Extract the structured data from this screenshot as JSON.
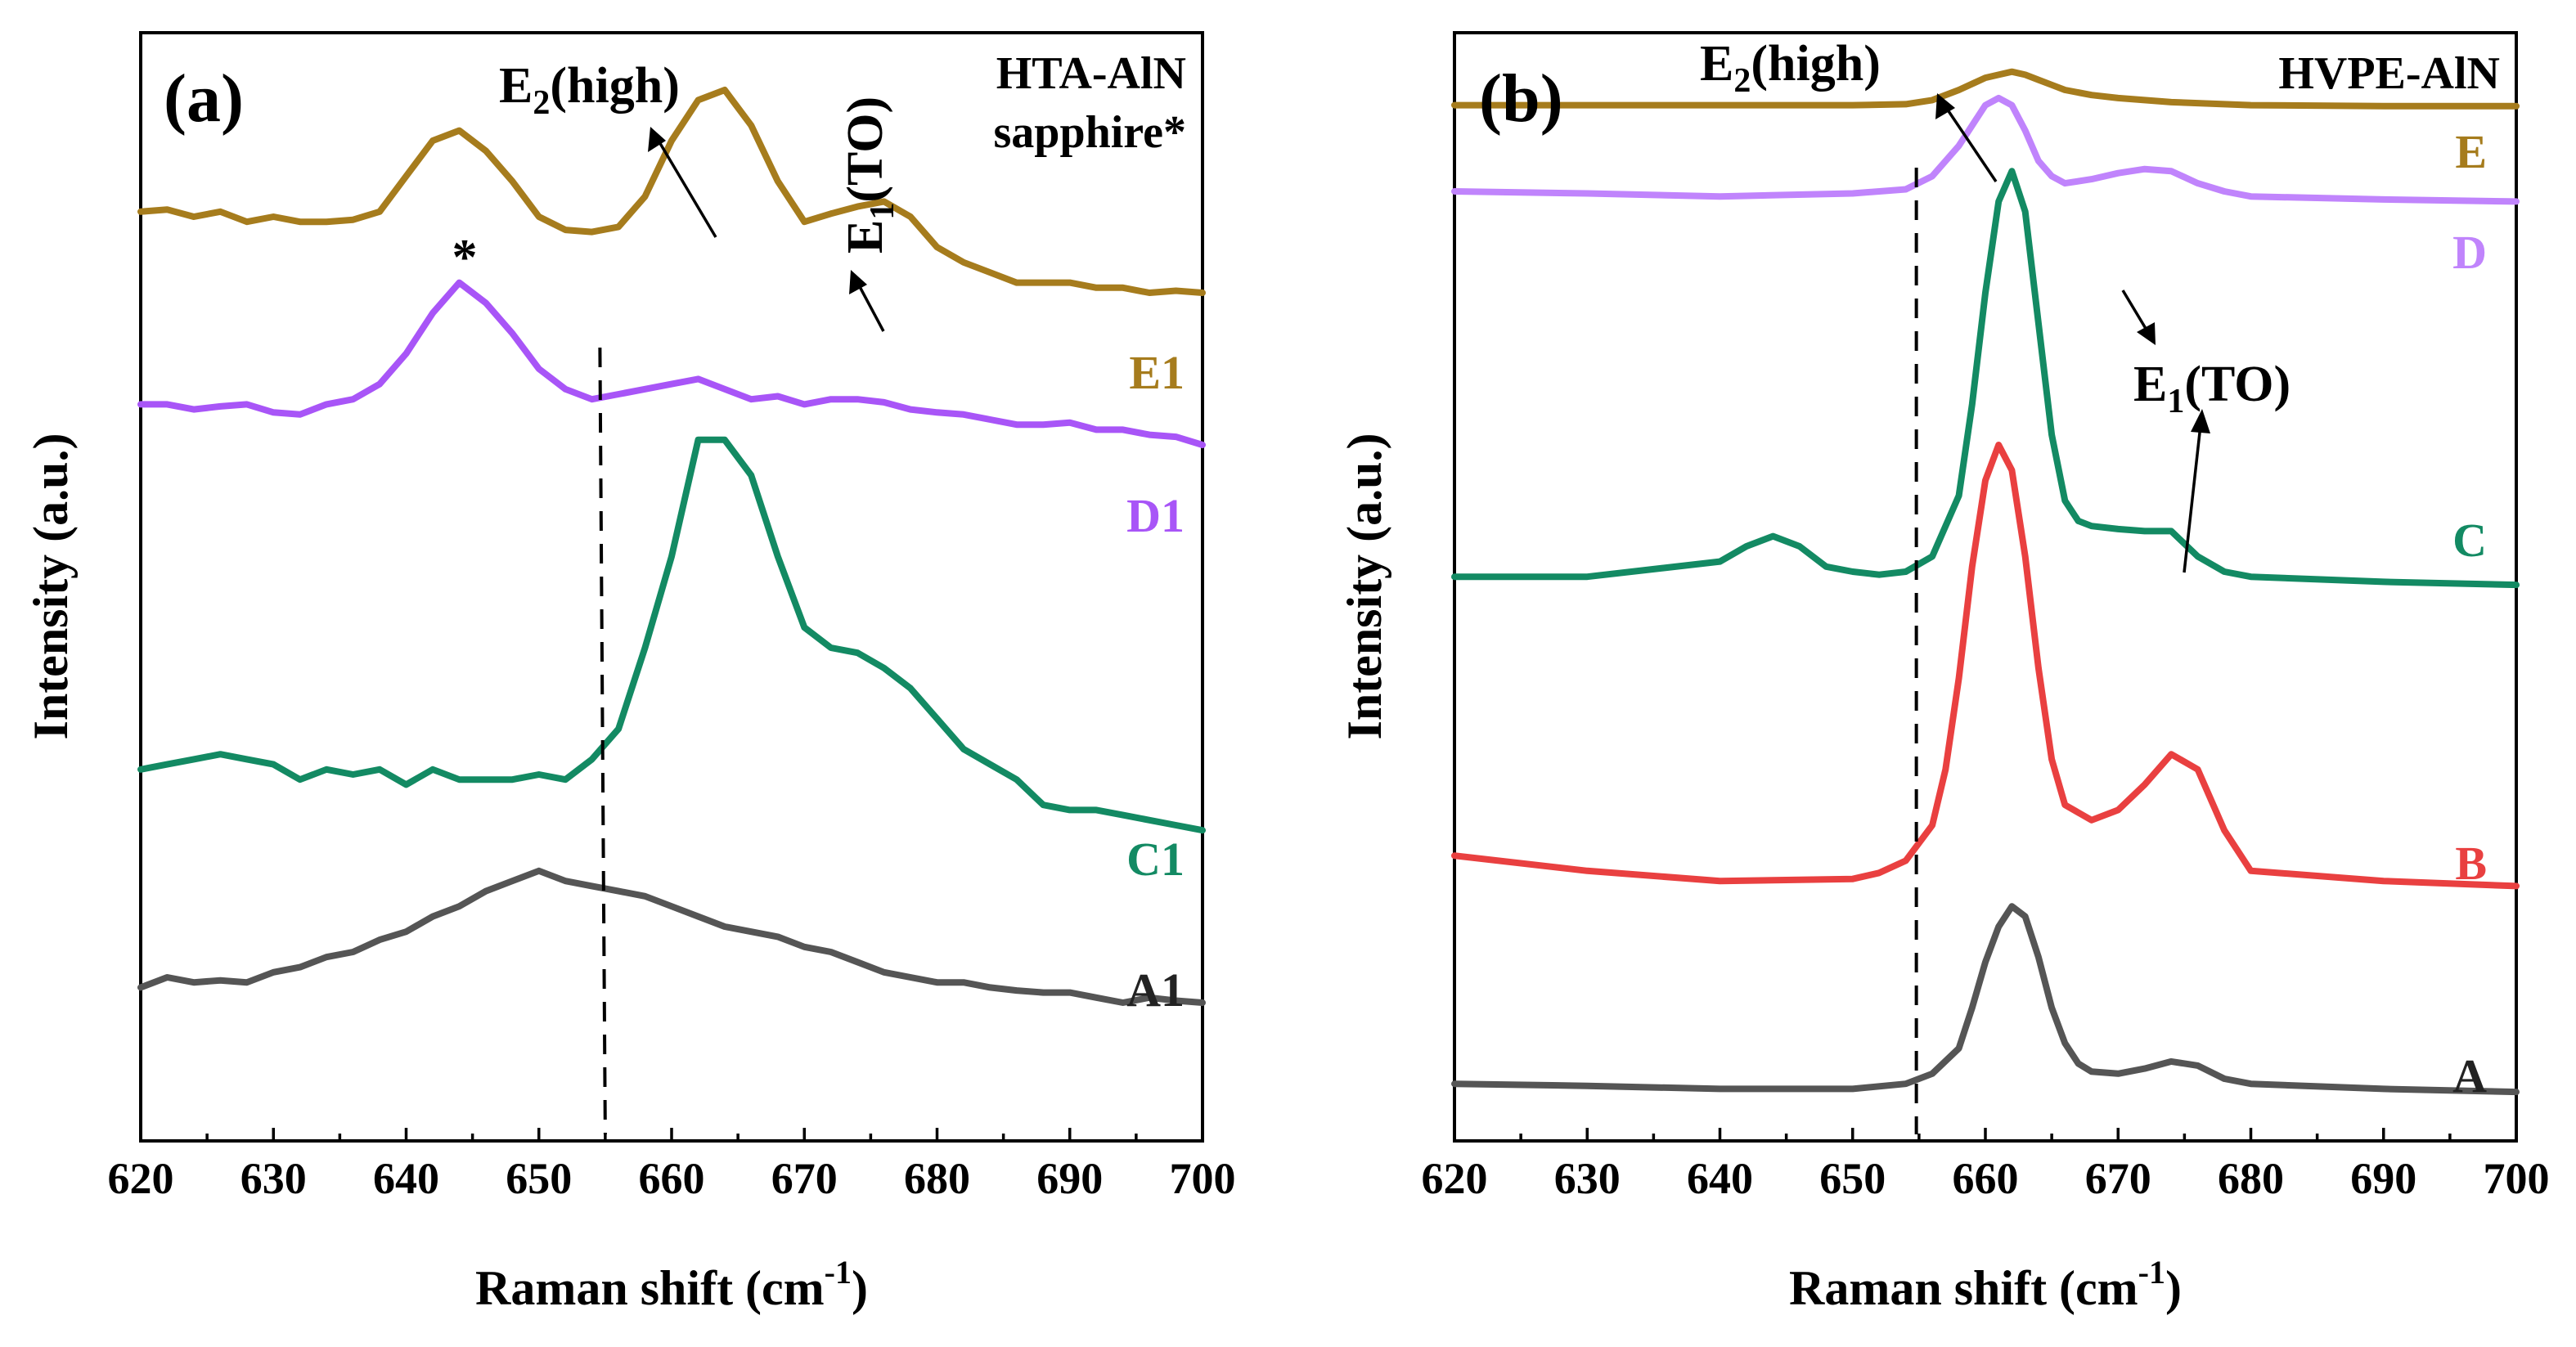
{
  "chart_data": [
    {
      "panel": "(a)",
      "type": "line",
      "title": "HTA-AlN",
      "subtitle": "sapphire*",
      "xlabel": "Raman shift (cm",
      "xlabel_sup": "-1",
      "xlabel_close": ")",
      "ylabel": "Intensity (a.u.)",
      "xlim": [
        620,
        700
      ],
      "ylim": [
        0,
        10
      ],
      "xticks": [
        "620",
        "630",
        "640",
        "650",
        "660",
        "670",
        "680",
        "690",
        "700"
      ],
      "dashed_line_x": [
        654.6,
        655.0
      ],
      "series": [
        {
          "name": "A1",
          "color": "#555555",
          "x": [
            620,
            622,
            624,
            626,
            628,
            630,
            632,
            634,
            636,
            638,
            640,
            642,
            644,
            646,
            648,
            650,
            652,
            654,
            656,
            658,
            660,
            662,
            664,
            666,
            668,
            670,
            672,
            674,
            676,
            678,
            680,
            682,
            684,
            686,
            688,
            690,
            692,
            694,
            696,
            698,
            700
          ],
          "y": [
            1.15,
            1.25,
            1.2,
            1.22,
            1.2,
            1.3,
            1.35,
            1.45,
            1.5,
            1.62,
            1.7,
            1.85,
            1.95,
            2.1,
            2.2,
            2.3,
            2.2,
            2.15,
            2.1,
            2.05,
            1.95,
            1.85,
            1.75,
            1.7,
            1.65,
            1.55,
            1.5,
            1.4,
            1.3,
            1.25,
            1.2,
            1.2,
            1.15,
            1.12,
            1.1,
            1.1,
            1.05,
            1.0,
            1.05,
            1.02,
            1.0
          ]
        },
        {
          "name": "C1",
          "color": "#138a63",
          "x": [
            620,
            622,
            624,
            626,
            628,
            630,
            632,
            634,
            636,
            638,
            640,
            642,
            644,
            646,
            648,
            650,
            652,
            654,
            656,
            658,
            660,
            662,
            664,
            666,
            668,
            670,
            672,
            674,
            676,
            678,
            680,
            682,
            684,
            686,
            688,
            690,
            692,
            694,
            696,
            698,
            700
          ],
          "y": [
            3.3,
            3.35,
            3.4,
            3.45,
            3.4,
            3.35,
            3.2,
            3.3,
            3.25,
            3.3,
            3.15,
            3.3,
            3.2,
            3.2,
            3.2,
            3.25,
            3.2,
            3.4,
            3.7,
            4.5,
            5.4,
            6.55,
            6.55,
            6.2,
            5.4,
            4.7,
            4.5,
            4.45,
            4.3,
            4.1,
            3.8,
            3.5,
            3.35,
            3.2,
            2.95,
            2.9,
            2.9,
            2.85,
            2.8,
            2.75,
            2.7
          ]
        },
        {
          "name": "D1",
          "color": "#a855f7",
          "x": [
            620,
            622,
            624,
            626,
            628,
            630,
            632,
            634,
            636,
            638,
            640,
            642,
            644,
            646,
            648,
            650,
            652,
            654,
            656,
            658,
            660,
            662,
            664,
            666,
            668,
            670,
            672,
            674,
            676,
            678,
            680,
            682,
            684,
            686,
            688,
            690,
            692,
            694,
            696,
            698,
            700
          ],
          "y": [
            6.9,
            6.9,
            6.85,
            6.88,
            6.9,
            6.82,
            6.8,
            6.9,
            6.95,
            7.1,
            7.4,
            7.8,
            8.1,
            7.9,
            7.6,
            7.25,
            7.05,
            6.95,
            7.0,
            7.05,
            7.1,
            7.15,
            7.05,
            6.95,
            6.98,
            6.9,
            6.95,
            6.95,
            6.92,
            6.85,
            6.82,
            6.8,
            6.75,
            6.7,
            6.7,
            6.72,
            6.65,
            6.65,
            6.6,
            6.58,
            6.5
          ]
        },
        {
          "name": "E1",
          "color": "#a67c1d",
          "x": [
            620,
            622,
            624,
            626,
            628,
            630,
            632,
            634,
            636,
            638,
            640,
            642,
            644,
            646,
            648,
            650,
            652,
            654,
            656,
            658,
            660,
            662,
            664,
            666,
            668,
            670,
            672,
            674,
            676,
            678,
            680,
            682,
            684,
            686,
            688,
            690,
            692,
            694,
            696,
            698,
            700
          ],
          "y": [
            8.8,
            8.82,
            8.75,
            8.8,
            8.7,
            8.75,
            8.7,
            8.7,
            8.72,
            8.8,
            9.15,
            9.5,
            9.6,
            9.4,
            9.1,
            8.75,
            8.62,
            8.6,
            8.65,
            8.95,
            9.5,
            9.9,
            10.0,
            9.65,
            9.1,
            8.7,
            8.78,
            8.85,
            8.9,
            8.75,
            8.45,
            8.3,
            8.2,
            8.1,
            8.1,
            8.1,
            8.05,
            8.05,
            8.0,
            8.02,
            8.0
          ]
        }
      ],
      "annotations": [
        "*",
        "E",
        "2",
        "(high)",
        "E",
        "1",
        "(TO)"
      ]
    },
    {
      "panel": "(b)",
      "type": "line",
      "title": "HVPE-AlN",
      "xlabel": "Raman shift (cm",
      "xlabel_sup": "-1",
      "xlabel_close": ")",
      "ylabel": "Intensity (a.u.)",
      "xlim": [
        620,
        700
      ],
      "ylim": [
        0,
        10
      ],
      "xticks": [
        "620",
        "630",
        "640",
        "650",
        "660",
        "670",
        "680",
        "690",
        "700"
      ],
      "dashed_line_x": [
        654.8,
        654.8
      ],
      "series": [
        {
          "name": "A",
          "color": "#555555",
          "x": [
            620,
            630,
            640,
            650,
            654,
            656,
            658,
            659,
            660,
            661,
            662,
            663,
            664,
            665,
            666,
            667,
            668,
            670,
            672,
            674,
            676,
            678,
            680,
            690,
            700
          ],
          "y": [
            0.2,
            0.18,
            0.15,
            0.15,
            0.2,
            0.3,
            0.55,
            0.95,
            1.4,
            1.75,
            1.95,
            1.85,
            1.45,
            0.95,
            0.6,
            0.4,
            0.32,
            0.3,
            0.35,
            0.42,
            0.38,
            0.25,
            0.2,
            0.15,
            0.12
          ]
        },
        {
          "name": "B",
          "color": "#e94040",
          "x": [
            620,
            630,
            640,
            650,
            652,
            654,
            656,
            657,
            658,
            659,
            660,
            661,
            662,
            663,
            664,
            665,
            666,
            668,
            670,
            672,
            674,
            676,
            678,
            680,
            690,
            700
          ],
          "y": [
            2.45,
            2.3,
            2.2,
            2.22,
            2.28,
            2.4,
            2.75,
            3.3,
            4.2,
            5.3,
            6.15,
            6.5,
            6.25,
            5.4,
            4.3,
            3.4,
            2.95,
            2.8,
            2.9,
            3.15,
            3.45,
            3.3,
            2.7,
            2.3,
            2.2,
            2.15
          ]
        },
        {
          "name": "C",
          "color": "#138a63",
          "x": [
            620,
            630,
            640,
            642,
            644,
            646,
            648,
            650,
            652,
            654,
            656,
            658,
            659,
            660,
            661,
            662,
            663,
            664,
            665,
            666,
            667,
            668,
            670,
            672,
            674,
            676,
            678,
            680,
            690,
            700
          ],
          "y": [
            5.2,
            5.2,
            5.35,
            5.5,
            5.6,
            5.5,
            5.3,
            5.25,
            5.22,
            5.25,
            5.4,
            6.0,
            6.9,
            8.0,
            8.9,
            9.2,
            8.8,
            7.7,
            6.6,
            5.95,
            5.75,
            5.7,
            5.67,
            5.65,
            5.65,
            5.4,
            5.25,
            5.2,
            5.15,
            5.12
          ]
        },
        {
          "name": "D",
          "color": "#c084fc",
          "x": [
            620,
            630,
            640,
            650,
            654,
            656,
            658,
            659,
            660,
            661,
            662,
            663,
            664,
            665,
            666,
            668,
            670,
            672,
            674,
            676,
            678,
            680,
            690,
            700
          ],
          "y": [
            9.0,
            8.98,
            8.95,
            8.98,
            9.02,
            9.15,
            9.45,
            9.65,
            9.85,
            9.92,
            9.85,
            9.6,
            9.3,
            9.15,
            9.08,
            9.12,
            9.18,
            9.22,
            9.2,
            9.08,
            9.0,
            8.95,
            8.92,
            8.9
          ]
        },
        {
          "name": "E",
          "color": "#a67c1d",
          "x": [
            620,
            630,
            640,
            650,
            654,
            656,
            658,
            660,
            661,
            662,
            663,
            664,
            665,
            666,
            668,
            670,
            672,
            674,
            676,
            678,
            680,
            690,
            700
          ],
          "y": [
            9.85,
            9.85,
            9.85,
            9.85,
            9.86,
            9.9,
            10.0,
            10.12,
            10.15,
            10.18,
            10.15,
            10.1,
            10.05,
            10.0,
            9.95,
            9.92,
            9.9,
            9.88,
            9.87,
            9.86,
            9.85,
            9.84,
            9.84
          ]
        }
      ],
      "annotations": [
        "E",
        "2",
        "(high)",
        "E",
        "1",
        "(TO)"
      ]
    }
  ]
}
